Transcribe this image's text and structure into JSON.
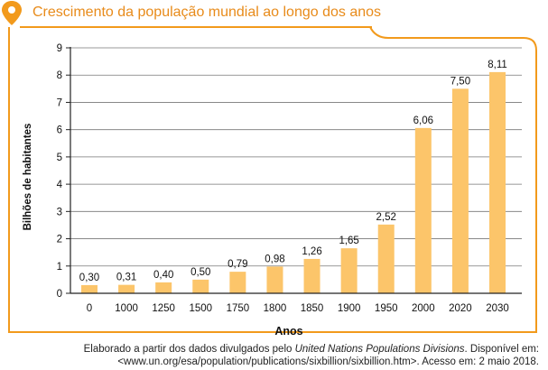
{
  "header": {
    "title": "Crescimento da população mundial ao longo dos anos",
    "pin_icon": "location-pin-icon",
    "accent_color": "#f29a1c"
  },
  "chart_data": {
    "type": "bar",
    "title": "",
    "xlabel": "Anos",
    "ylabel": "Bilhões de habitantes",
    "ylim": [
      0,
      9
    ],
    "yticks": [
      0,
      1,
      2,
      3,
      4,
      5,
      6,
      7,
      8,
      9
    ],
    "grid": "horizontal",
    "categories": [
      "0",
      "1000",
      "1250",
      "1500",
      "1750",
      "1800",
      "1850",
      "1900",
      "1950",
      "2000",
      "2020",
      "2030"
    ],
    "values": [
      0.3,
      0.31,
      0.4,
      0.5,
      0.79,
      0.98,
      1.26,
      1.65,
      2.52,
      6.06,
      7.5,
      8.11
    ],
    "value_labels": [
      "0,30",
      "0,31",
      "0,40",
      "0,50",
      "0,79",
      "0,98",
      "1,26",
      "1,65",
      "2,52",
      "6,06",
      "7,50",
      "8,11"
    ],
    "bar_color": "#fcc56a"
  },
  "source": {
    "line1_prefix": "Elaborado a partir dos dados divulgados pelo ",
    "line1_italic": "United Nations Populations Divisions",
    "line1_suffix": ". Disponível em:",
    "line2": "<www.un.org/esa/population/publications/sixbillion/sixbillion.htm>. Acesso em: 2 maio 2018."
  }
}
